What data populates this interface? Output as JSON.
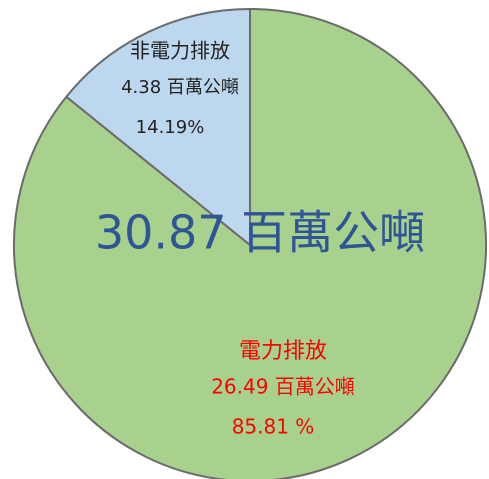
{
  "chart_data": {
    "type": "pie",
    "categories": [
      "電力排放",
      "非電力排放"
    ],
    "values": [
      85.81,
      14.19
    ],
    "value_labels": [
      "85.81 %",
      "14.19%"
    ],
    "amount_labels": [
      "26.49 百萬公噸",
      "4.38 百萬公噸"
    ],
    "colors": [
      "#a9d18e",
      "#bdd7ee"
    ],
    "label_colors": [
      "#ff0000",
      "#222222"
    ],
    "annotation": "30.87 百萬公噸"
  }
}
